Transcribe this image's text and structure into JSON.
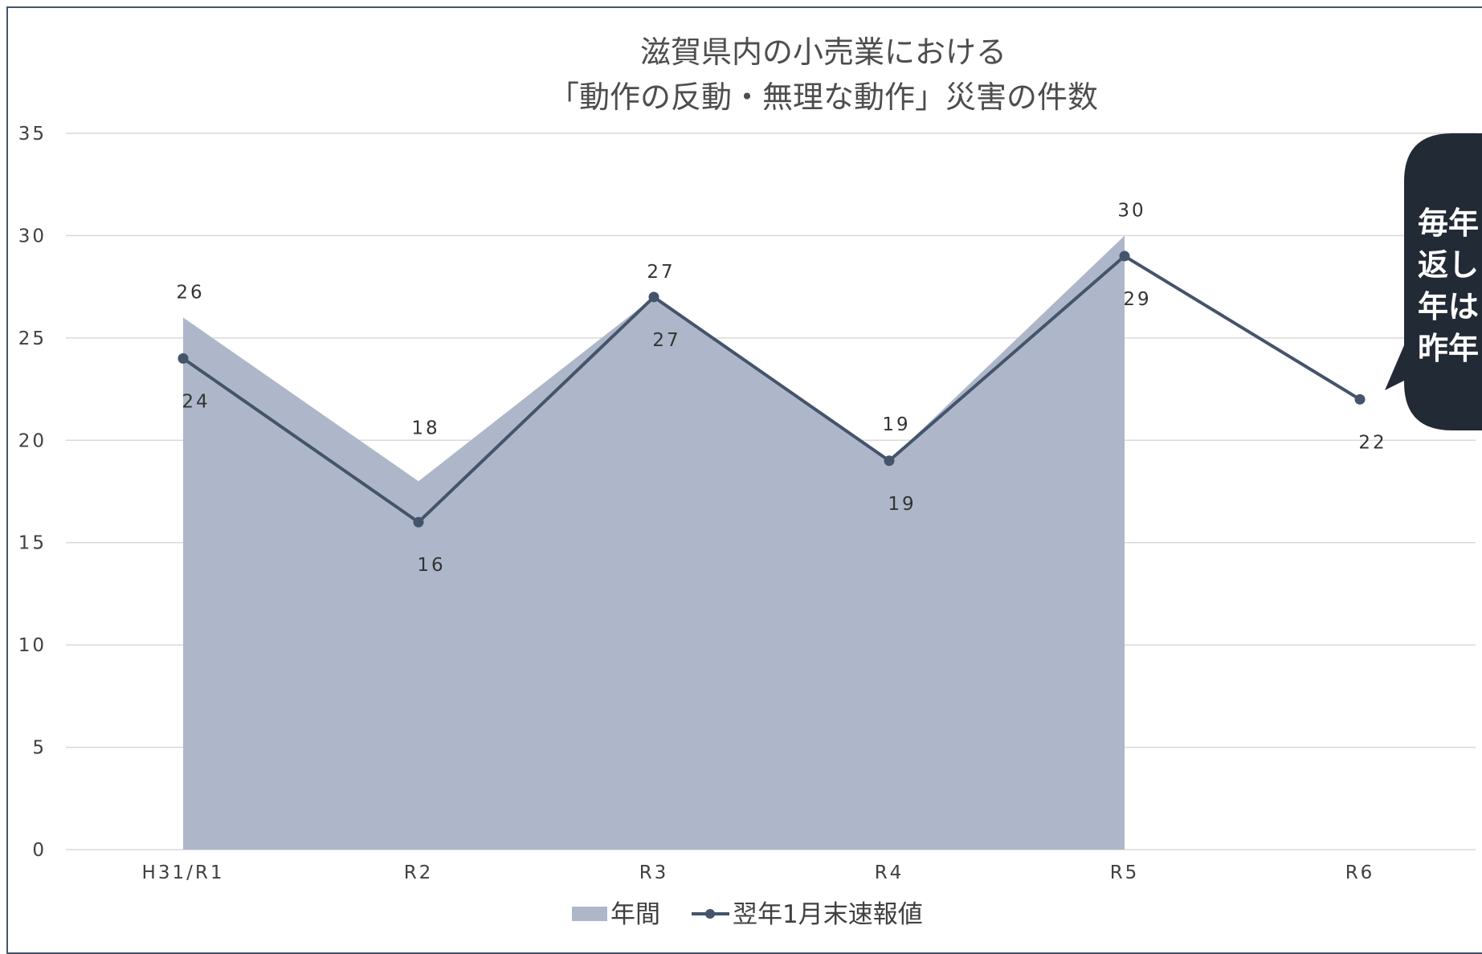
{
  "chart_data": {
    "type": "area",
    "title": [
      "滋賀県内の小売業における",
      "「動作の反動・無理な動作」災害の件数"
    ],
    "categories": [
      "H31/R1",
      "R2",
      "R3",
      "R4",
      "R5",
      "R6"
    ],
    "ylim": [
      0,
      35
    ],
    "yticks": [
      0,
      5,
      10,
      15,
      20,
      25,
      30,
      35
    ],
    "grid": true,
    "legend_position": "bottom",
    "series": [
      {
        "name": "年間",
        "type": "area",
        "color": "#adb7c9",
        "values": [
          26,
          18,
          27,
          19,
          30,
          null
        ]
      },
      {
        "name": "翌年1月末速報値",
        "type": "line",
        "color": "#44546a",
        "values": [
          24,
          16,
          27,
          19,
          29,
          22
        ]
      }
    ],
    "callout": {
      "lines": [
        "毎年",
        "返し",
        "年は",
        "昨年"
      ],
      "color": "#222a35"
    }
  }
}
